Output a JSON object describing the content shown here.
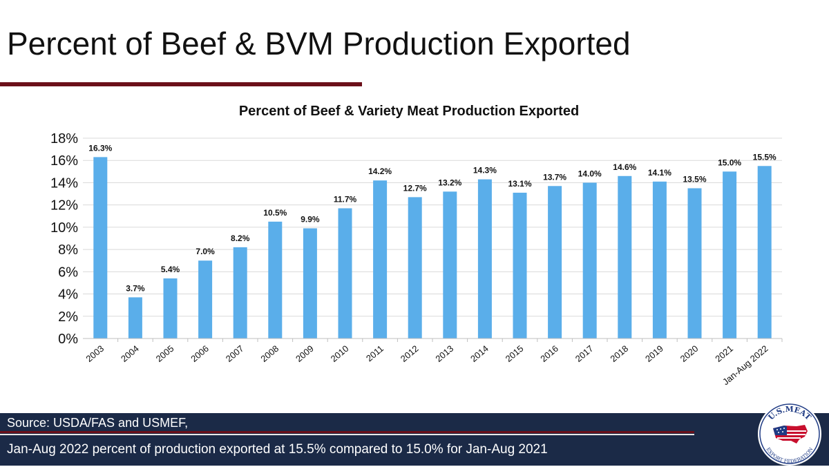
{
  "slide": {
    "title": "Percent of Beef & BVM Production Exported"
  },
  "colors": {
    "bar": "#5aaeea",
    "rule": "#6b0f1a",
    "footer_bg": "#1b2a47",
    "gridline": "#d9d9d9",
    "logo_red": "#c8102e",
    "logo_blue": "#1f3b84"
  },
  "chart_data": {
    "type": "bar",
    "title": "Percent of Beef & Variety Meat Production Exported",
    "xlabel": "",
    "ylabel": "",
    "ylim": [
      0,
      18
    ],
    "yticks": [
      "0%",
      "2%",
      "4%",
      "6%",
      "8%",
      "10%",
      "12%",
      "14%",
      "16%",
      "18%"
    ],
    "grid": true,
    "categories": [
      "2003",
      "2004",
      "2005",
      "2006",
      "2007",
      "2008",
      "2009",
      "2010",
      "2011",
      "2012",
      "2013",
      "2014",
      "2015",
      "2016",
      "2017",
      "2018",
      "2019",
      "2020",
      "2021",
      "Jan-Aug 2022"
    ],
    "values": [
      16.3,
      3.7,
      5.4,
      7.0,
      8.2,
      10.5,
      9.9,
      11.7,
      14.2,
      12.7,
      13.2,
      14.3,
      13.1,
      13.7,
      14.0,
      14.6,
      14.1,
      13.5,
      15.0,
      15.5
    ],
    "data_labels": [
      "16.3%",
      "3.7%",
      "5.4%",
      "7.0%",
      "8.2%",
      "10.5%",
      "9.9%",
      "11.7%",
      "14.2%",
      "12.7%",
      "13.2%",
      "14.3%",
      "13.1%",
      "13.7%",
      "14.0%",
      "14.6%",
      "14.1%",
      "13.5%",
      "15.0%",
      "15.5%"
    ]
  },
  "footer": {
    "source": "Source: USDA/FAS and USMEF,",
    "note": "Jan-Aug 2022 percent of production exported at 15.5% compared to 15.0% for Jan-Aug 2021"
  },
  "logo": {
    "top_text": "U.S.MEAT",
    "bottom_text": "EXPORT FEDERATION",
    "icon": "usa-flag-map-icon"
  }
}
